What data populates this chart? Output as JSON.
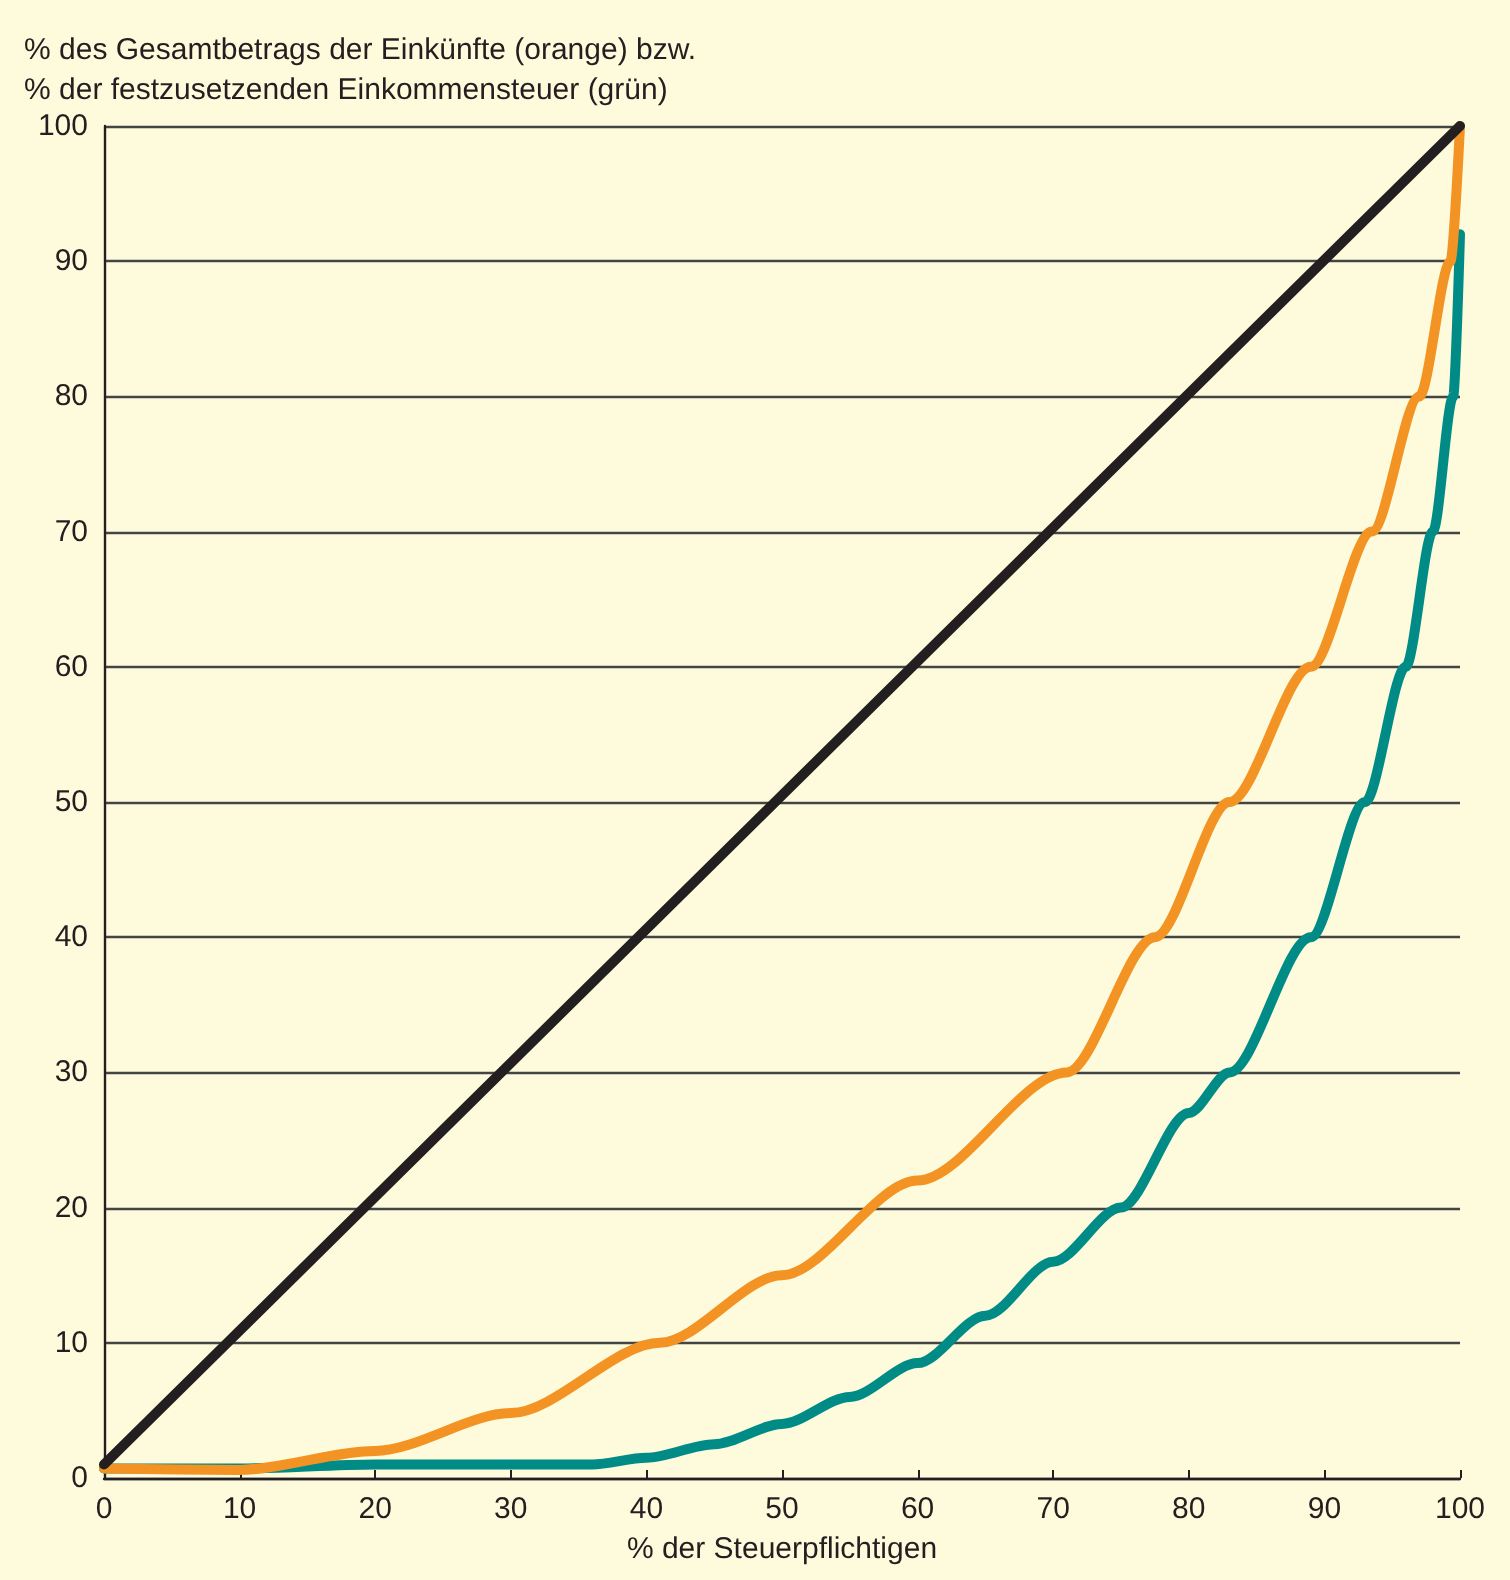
{
  "chart_data": {
    "type": "line",
    "ylabel": "% des Gesamtbetrags der Einkünfte (orange) bzw.\n% der festzusetzenden Einkommensteuer (grün)",
    "xlabel": "% der Steuerpflichtigen",
    "series": [
      {
        "color": "#231f20",
        "x": [
          0,
          100
        ],
        "values": [
          1,
          100
        ]
      },
      {
        "color": "#f39323",
        "x": [
          0,
          10,
          20,
          30,
          41,
          50,
          60,
          71,
          77.5,
          83,
          89,
          93.5,
          97,
          99.3,
          100
        ],
        "values": [
          0.7,
          0.6,
          2,
          4.8,
          10,
          15,
          22,
          30,
          40,
          50,
          60,
          70,
          80,
          90,
          100
        ]
      },
      {
        "color": "#008b87",
        "x": [
          0,
          10,
          20,
          30,
          36,
          40,
          45,
          50,
          55,
          60,
          65,
          70,
          75,
          80,
          83,
          89,
          93,
          96,
          98,
          99.5,
          100
        ],
        "values": [
          0.7,
          0.7,
          1,
          1,
          1,
          1.5,
          2.5,
          4,
          6,
          8.5,
          12,
          16,
          20,
          27,
          30,
          40,
          50,
          60,
          70,
          80,
          92
        ]
      }
    ],
    "xlim": [
      0,
      100
    ],
    "xticks": [
      0,
      10,
      20,
      30,
      40,
      50,
      60,
      70,
      80,
      90,
      100
    ],
    "ylim": [
      0,
      100
    ],
    "yticks": [
      0,
      10,
      20,
      30,
      40,
      50,
      60,
      70,
      80,
      90,
      100
    ],
    "grid": "y",
    "marker": "none",
    "line_style": "solid"
  }
}
